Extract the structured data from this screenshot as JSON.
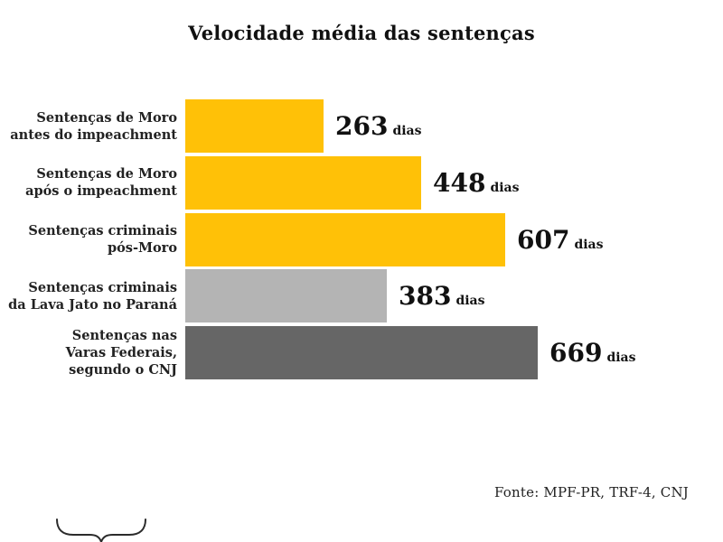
{
  "title": "Velocidade média das sentenças",
  "source": "Fonte: MPF-PR, TRF-4, CNJ",
  "colors": {
    "highlight_yellow": "#FFC107",
    "neutral_light_gray": "#B4B4B4",
    "neutral_dark_gray": "#666666",
    "text": "#111111"
  },
  "chart_data": {
    "type": "bar",
    "orientation": "horizontal",
    "title": "Velocidade média das sentenças",
    "unit": "dias",
    "xlim": [
      0,
      700
    ],
    "grid": false,
    "legend": false,
    "categories": [
      "Sentenças de Moro antes do impeachment",
      "Sentenças de Moro após o impeachment",
      "Sentenças criminais pós-Moro",
      "Sentenças criminais da Lava Jato no Paraná",
      "Sentenças nas Varas Federais, segundo o CNJ"
    ],
    "category_lines": [
      [
        "Sentenças de Moro",
        "antes do impeachment"
      ],
      [
        "Sentenças de Moro",
        "após o impeachment"
      ],
      [
        "Sentenças criminais",
        "pós-Moro"
      ],
      [
        "Sentenças criminais",
        "da Lava Jato no Paraná"
      ],
      [
        "Sentenças nas",
        "Varas Federais,",
        "segundo o CNJ"
      ]
    ],
    "values": [
      263,
      448,
      607,
      383,
      669
    ],
    "bar_colors": [
      "#FFC107",
      "#FFC107",
      "#FFC107",
      "#B4B4B4",
      "#666666"
    ],
    "data_labels": [
      "263",
      "448",
      "607",
      "383",
      "669"
    ],
    "source": "Fonte: MPF-PR, TRF-4, CNJ"
  }
}
